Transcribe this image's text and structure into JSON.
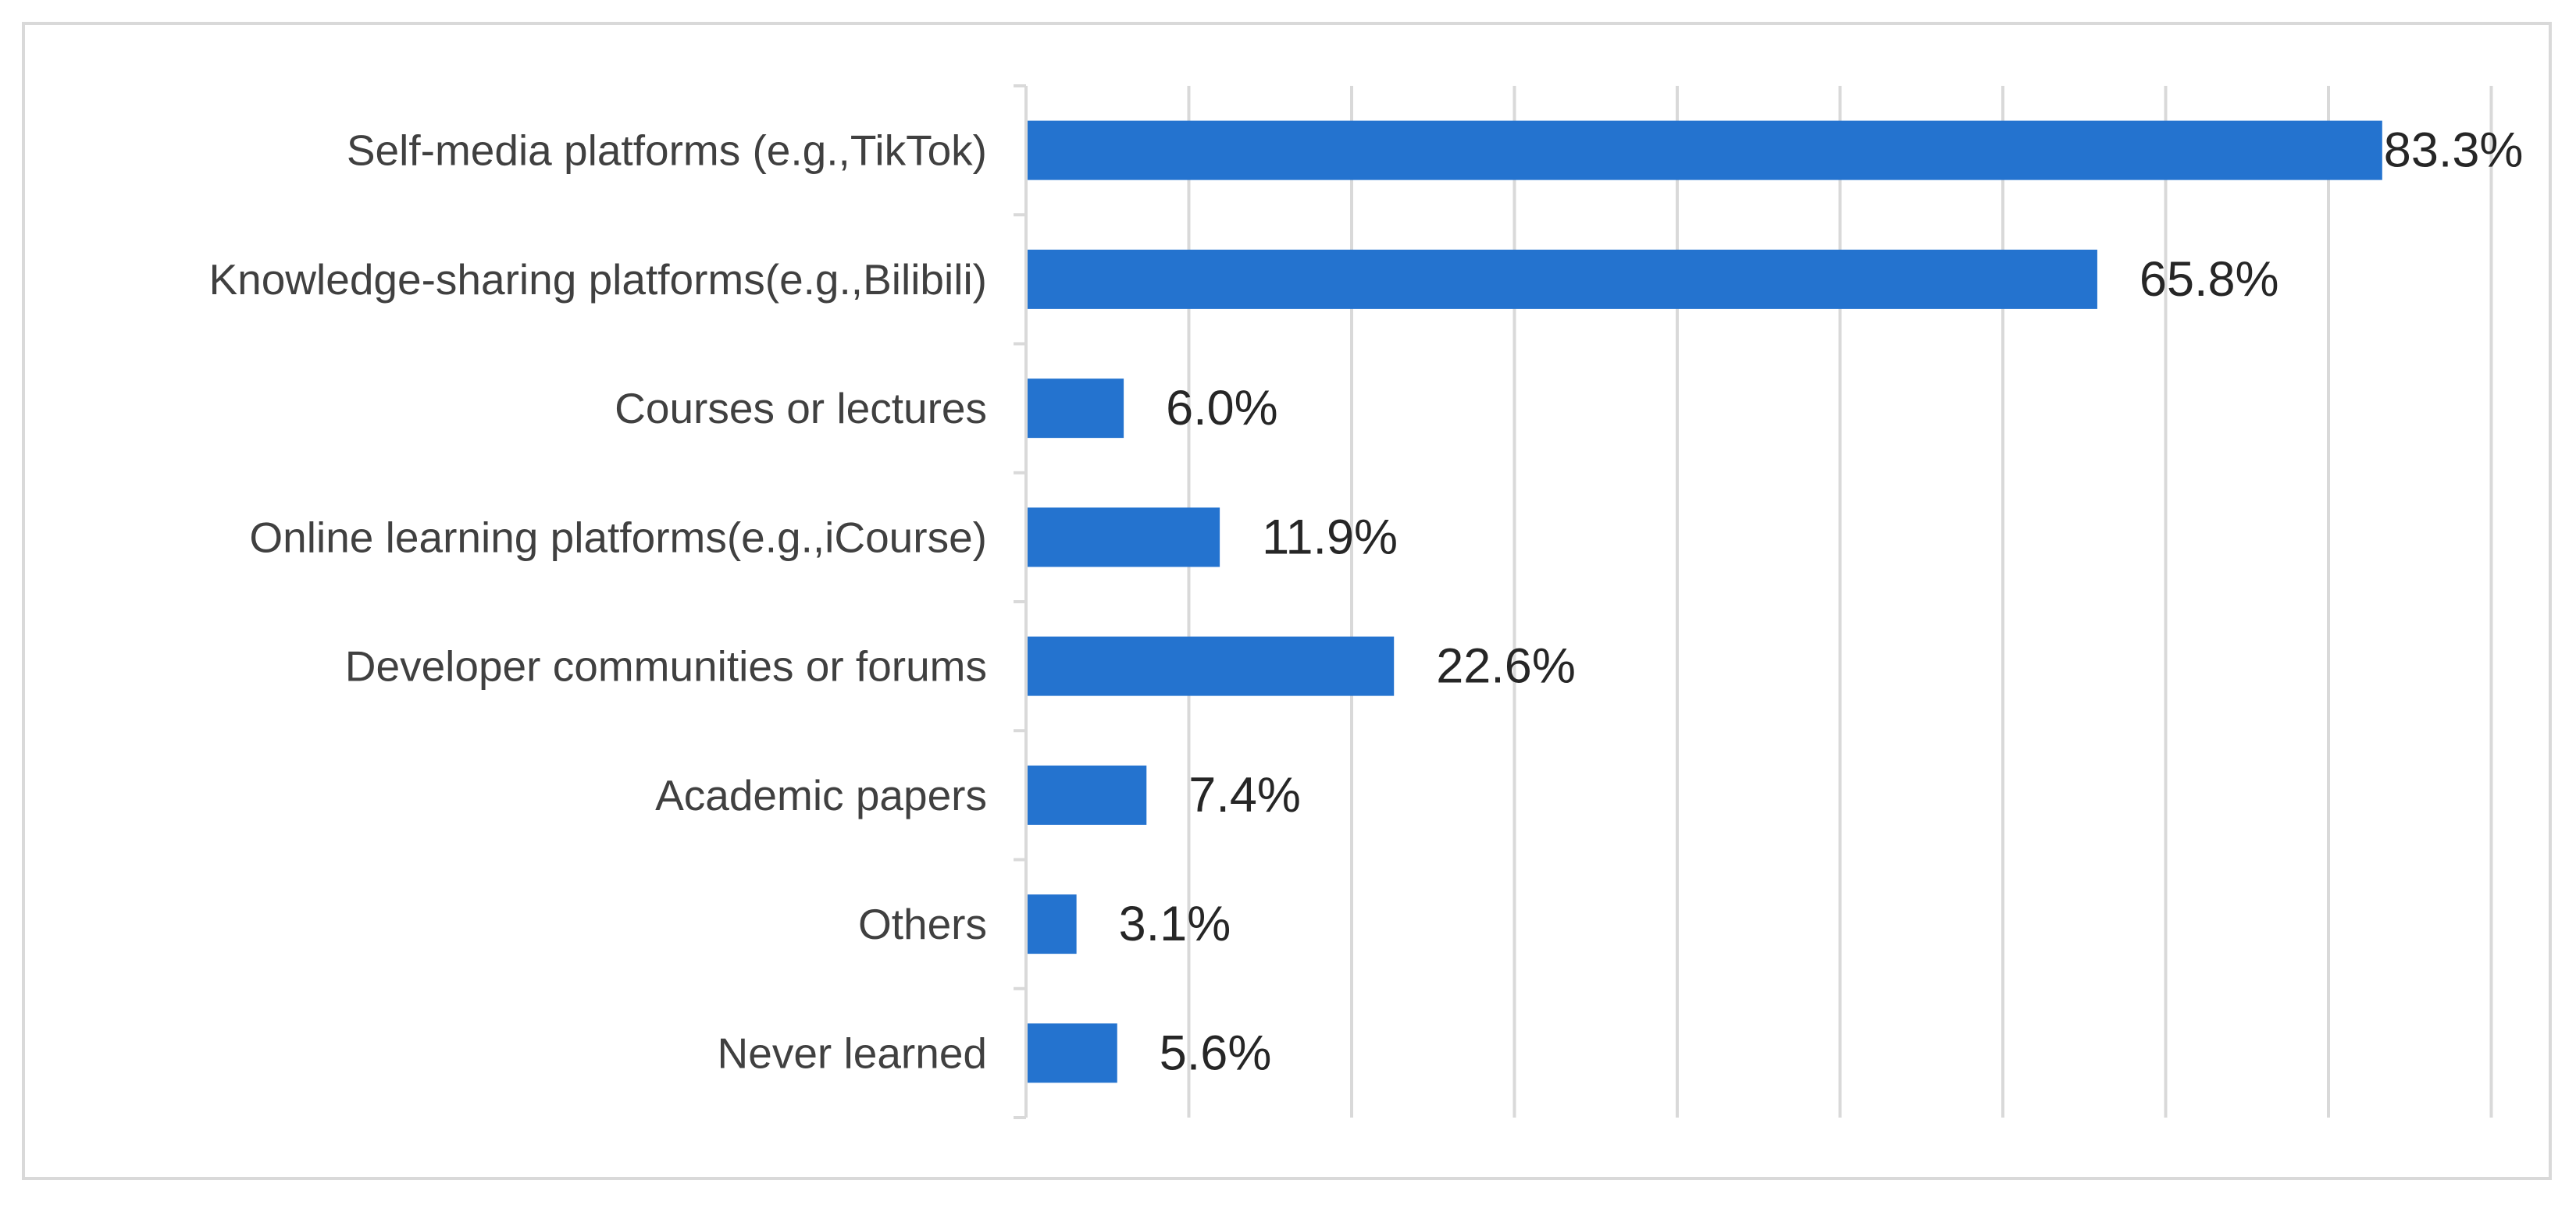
{
  "chart_data": {
    "type": "bar",
    "orientation": "horizontal",
    "categories": [
      "Self-media platforms (e.g.,TikTok)",
      "Knowledge-sharing platforms(e.g.,Bilibili)",
      "Courses or lectures",
      "Online learning platforms(e.g.,iCourse)",
      "Developer communities or forums",
      "Academic papers",
      "Others",
      "Never learned"
    ],
    "values": [
      83.3,
      65.8,
      6.0,
      11.9,
      22.6,
      7.4,
      3.1,
      5.6
    ],
    "data_labels": [
      "83.3%",
      "65.8%",
      "6.0%",
      "11.9%",
      "22.6%",
      "7.4%",
      "3.1%",
      "5.6%"
    ],
    "xlim": [
      0,
      90
    ],
    "x_gridline_step": 10,
    "x_tick_labels_shown": false,
    "grid": true,
    "legend": "none",
    "bar_color": "#2473CF",
    "title": "",
    "xlabel": "",
    "ylabel": ""
  }
}
